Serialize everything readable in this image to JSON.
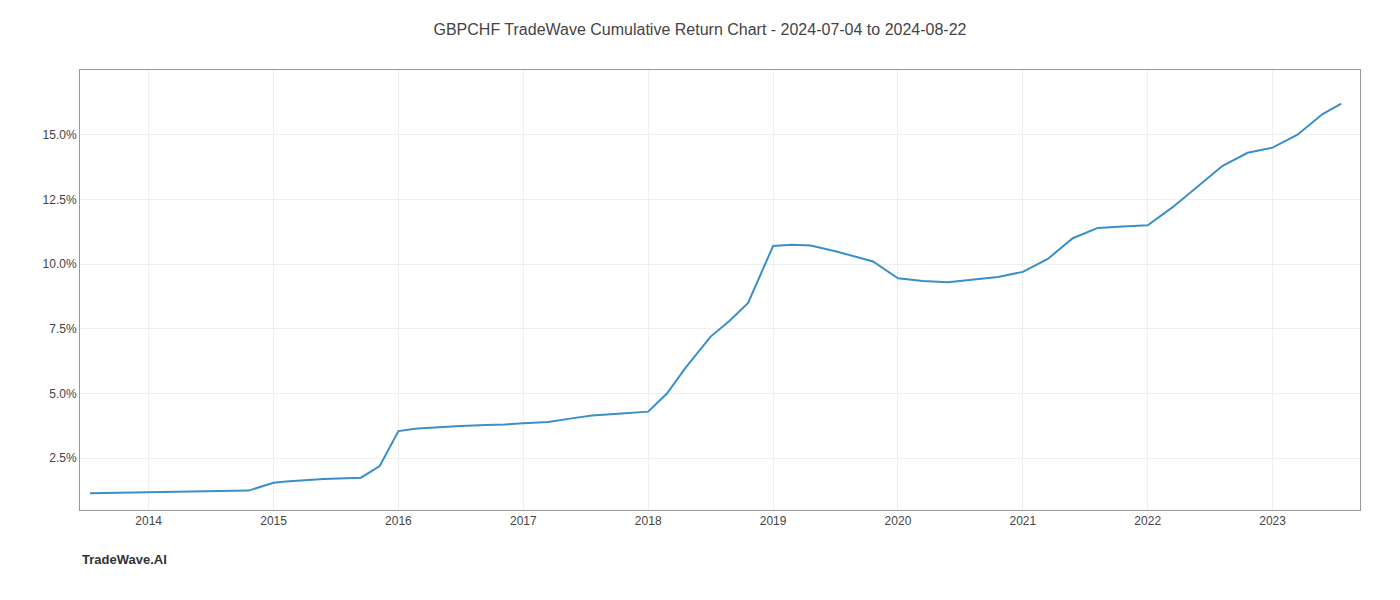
{
  "chart_data": {
    "type": "line",
    "title": "GBPCHF TradeWave Cumulative Return Chart - 2024-07-04 to 2024-08-22",
    "annotations": [
      "TradeWave.AI"
    ],
    "x": [
      2013.53,
      2014.0,
      2014.2,
      2014.5,
      2014.8,
      2015.0,
      2015.1,
      2015.4,
      2015.55,
      2015.7,
      2015.85,
      2016.0,
      2016.15,
      2016.3,
      2016.5,
      2016.7,
      2016.85,
      2017.0,
      2017.2,
      2017.4,
      2017.55,
      2017.7,
      2017.85,
      2018.0,
      2018.15,
      2018.3,
      2018.5,
      2018.65,
      2018.8,
      2019.0,
      2019.15,
      2019.3,
      2019.5,
      2019.65,
      2019.8,
      2020.0,
      2020.2,
      2020.4,
      2020.6,
      2020.8,
      2021.0,
      2021.2,
      2021.4,
      2021.6,
      2021.8,
      2022.0,
      2022.2,
      2022.4,
      2022.6,
      2022.8,
      2023.0,
      2023.2,
      2023.4,
      2023.55
    ],
    "values": [
      1.15,
      1.18,
      1.2,
      1.22,
      1.25,
      1.55,
      1.6,
      1.7,
      1.72,
      1.75,
      2.2,
      3.55,
      3.65,
      3.7,
      3.75,
      3.78,
      3.8,
      3.85,
      3.9,
      4.05,
      4.15,
      4.2,
      4.25,
      4.3,
      5.0,
      6.0,
      7.2,
      7.8,
      8.5,
      10.7,
      10.75,
      10.72,
      10.5,
      10.3,
      10.1,
      9.45,
      9.35,
      9.3,
      9.4,
      9.5,
      9.7,
      10.2,
      11.0,
      11.4,
      11.45,
      11.5,
      12.2,
      13.0,
      13.8,
      14.3,
      14.5,
      15.0,
      15.8,
      16.2
    ],
    "color": "#3a8fc9",
    "xlim": [
      2013.45,
      2023.7
    ],
    "ylim": [
      0.5,
      17.5
    ],
    "xticks": [
      2014,
      2015,
      2016,
      2017,
      2018,
      2019,
      2020,
      2021,
      2022,
      2023
    ],
    "yticks": [
      {
        "value": 2.5,
        "label": "2.5%"
      },
      {
        "value": 5.0,
        "label": "5.0%"
      },
      {
        "value": 7.5,
        "label": "7.5%"
      },
      {
        "value": 10.0,
        "label": "10.0%"
      },
      {
        "value": 12.5,
        "label": "12.5%"
      },
      {
        "value": 15.0,
        "label": "15.0%"
      }
    ],
    "grid": true
  }
}
